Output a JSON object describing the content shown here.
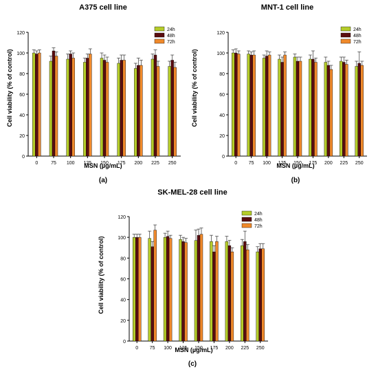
{
  "series_colors": {
    "24h": "#b5cc2a",
    "48h": "#5a0d10",
    "72h": "#f08a2c"
  },
  "chart_data": [
    {
      "type": "bar",
      "title": "A375 cell line",
      "panel_label": "(a)",
      "xlabel": "MSN (µg/mL)",
      "ylabel": "Cell viability (% of control)",
      "ylim": [
        0,
        120
      ],
      "yticks": [
        0,
        20,
        40,
        60,
        80,
        100,
        120
      ],
      "categories": [
        "0",
        "75",
        "100",
        "125",
        "150",
        "175",
        "200",
        "225",
        "250"
      ],
      "legend_position": "top-right",
      "series": [
        {
          "name": "24h",
          "values": [
            100,
            92,
            94,
            91,
            95,
            90,
            85,
            94,
            87
          ],
          "errors": [
            3,
            5,
            5,
            4,
            5,
            5,
            5,
            5,
            5
          ]
        },
        {
          "name": "48h",
          "values": [
            99,
            102,
            99,
            95,
            93,
            93,
            88,
            98,
            93
          ],
          "errors": [
            3,
            3,
            3,
            4,
            5,
            5,
            7,
            5,
            5
          ]
        },
        {
          "name": "72h",
          "values": [
            100,
            97,
            95,
            99,
            91,
            93,
            88,
            87,
            86
          ],
          "errors": [
            3,
            4,
            5,
            5,
            5,
            5,
            5,
            5,
            5
          ]
        }
      ]
    },
    {
      "type": "bar",
      "title": "MNT-1 cell line",
      "panel_label": "(b)",
      "xlabel": "MSN (µg/mL)",
      "ylabel": "Cell viability (% of control)",
      "ylim": [
        0,
        120
      ],
      "yticks": [
        0,
        20,
        40,
        60,
        80,
        100,
        120
      ],
      "categories": [
        "0",
        "75",
        "100",
        "125",
        "150",
        "175",
        "200",
        "225",
        "250"
      ],
      "legend_position": "top-right",
      "series": [
        {
          "name": "24h",
          "values": [
            100,
            99,
            95,
            94,
            96,
            94,
            91,
            92,
            87
          ],
          "errors": [
            3,
            3,
            3,
            4,
            3,
            4,
            5,
            4,
            5
          ]
        },
        {
          "name": "48h",
          "values": [
            100,
            98,
            97,
            91,
            92,
            94,
            88,
            91,
            90
          ],
          "errors": [
            4,
            3,
            5,
            5,
            4,
            8,
            4,
            5,
            11
          ]
        },
        {
          "name": "72h",
          "values": [
            99,
            98,
            98,
            98,
            92,
            91,
            84,
            89,
            88
          ],
          "errors": [
            3,
            4,
            3,
            3,
            4,
            4,
            4,
            4,
            4
          ]
        }
      ]
    },
    {
      "type": "bar",
      "title": "SK-MEL-28 cell line",
      "panel_label": "(c)",
      "xlabel": "MSN (µg/mL)",
      "ylabel": "Cell viability (% of control)",
      "ylim": [
        0,
        120
      ],
      "yticks": [
        0,
        20,
        40,
        60,
        80,
        100,
        120
      ],
      "categories": [
        "0",
        "75",
        "100",
        "125",
        "150",
        "175",
        "200",
        "225",
        "250"
      ],
      "legend_position": "top-right",
      "series": [
        {
          "name": "24h",
          "values": [
            100,
            99,
            100,
            98,
            97,
            96,
            96,
            92,
            86
          ],
          "errors": [
            3,
            7,
            4,
            4,
            10,
            6,
            5,
            6,
            5
          ]
        },
        {
          "name": "48h",
          "values": [
            100,
            91,
            101,
            96,
            102,
            86,
            92,
            96,
            89
          ],
          "errors": [
            3,
            5,
            5,
            4,
            6,
            6,
            5,
            10,
            5
          ]
        },
        {
          "name": "72h",
          "values": [
            100,
            107,
            99,
            95,
            103,
            96,
            86,
            88,
            89
          ],
          "errors": [
            3,
            5,
            3,
            4,
            6,
            5,
            4,
            5,
            5
          ]
        }
      ]
    }
  ]
}
